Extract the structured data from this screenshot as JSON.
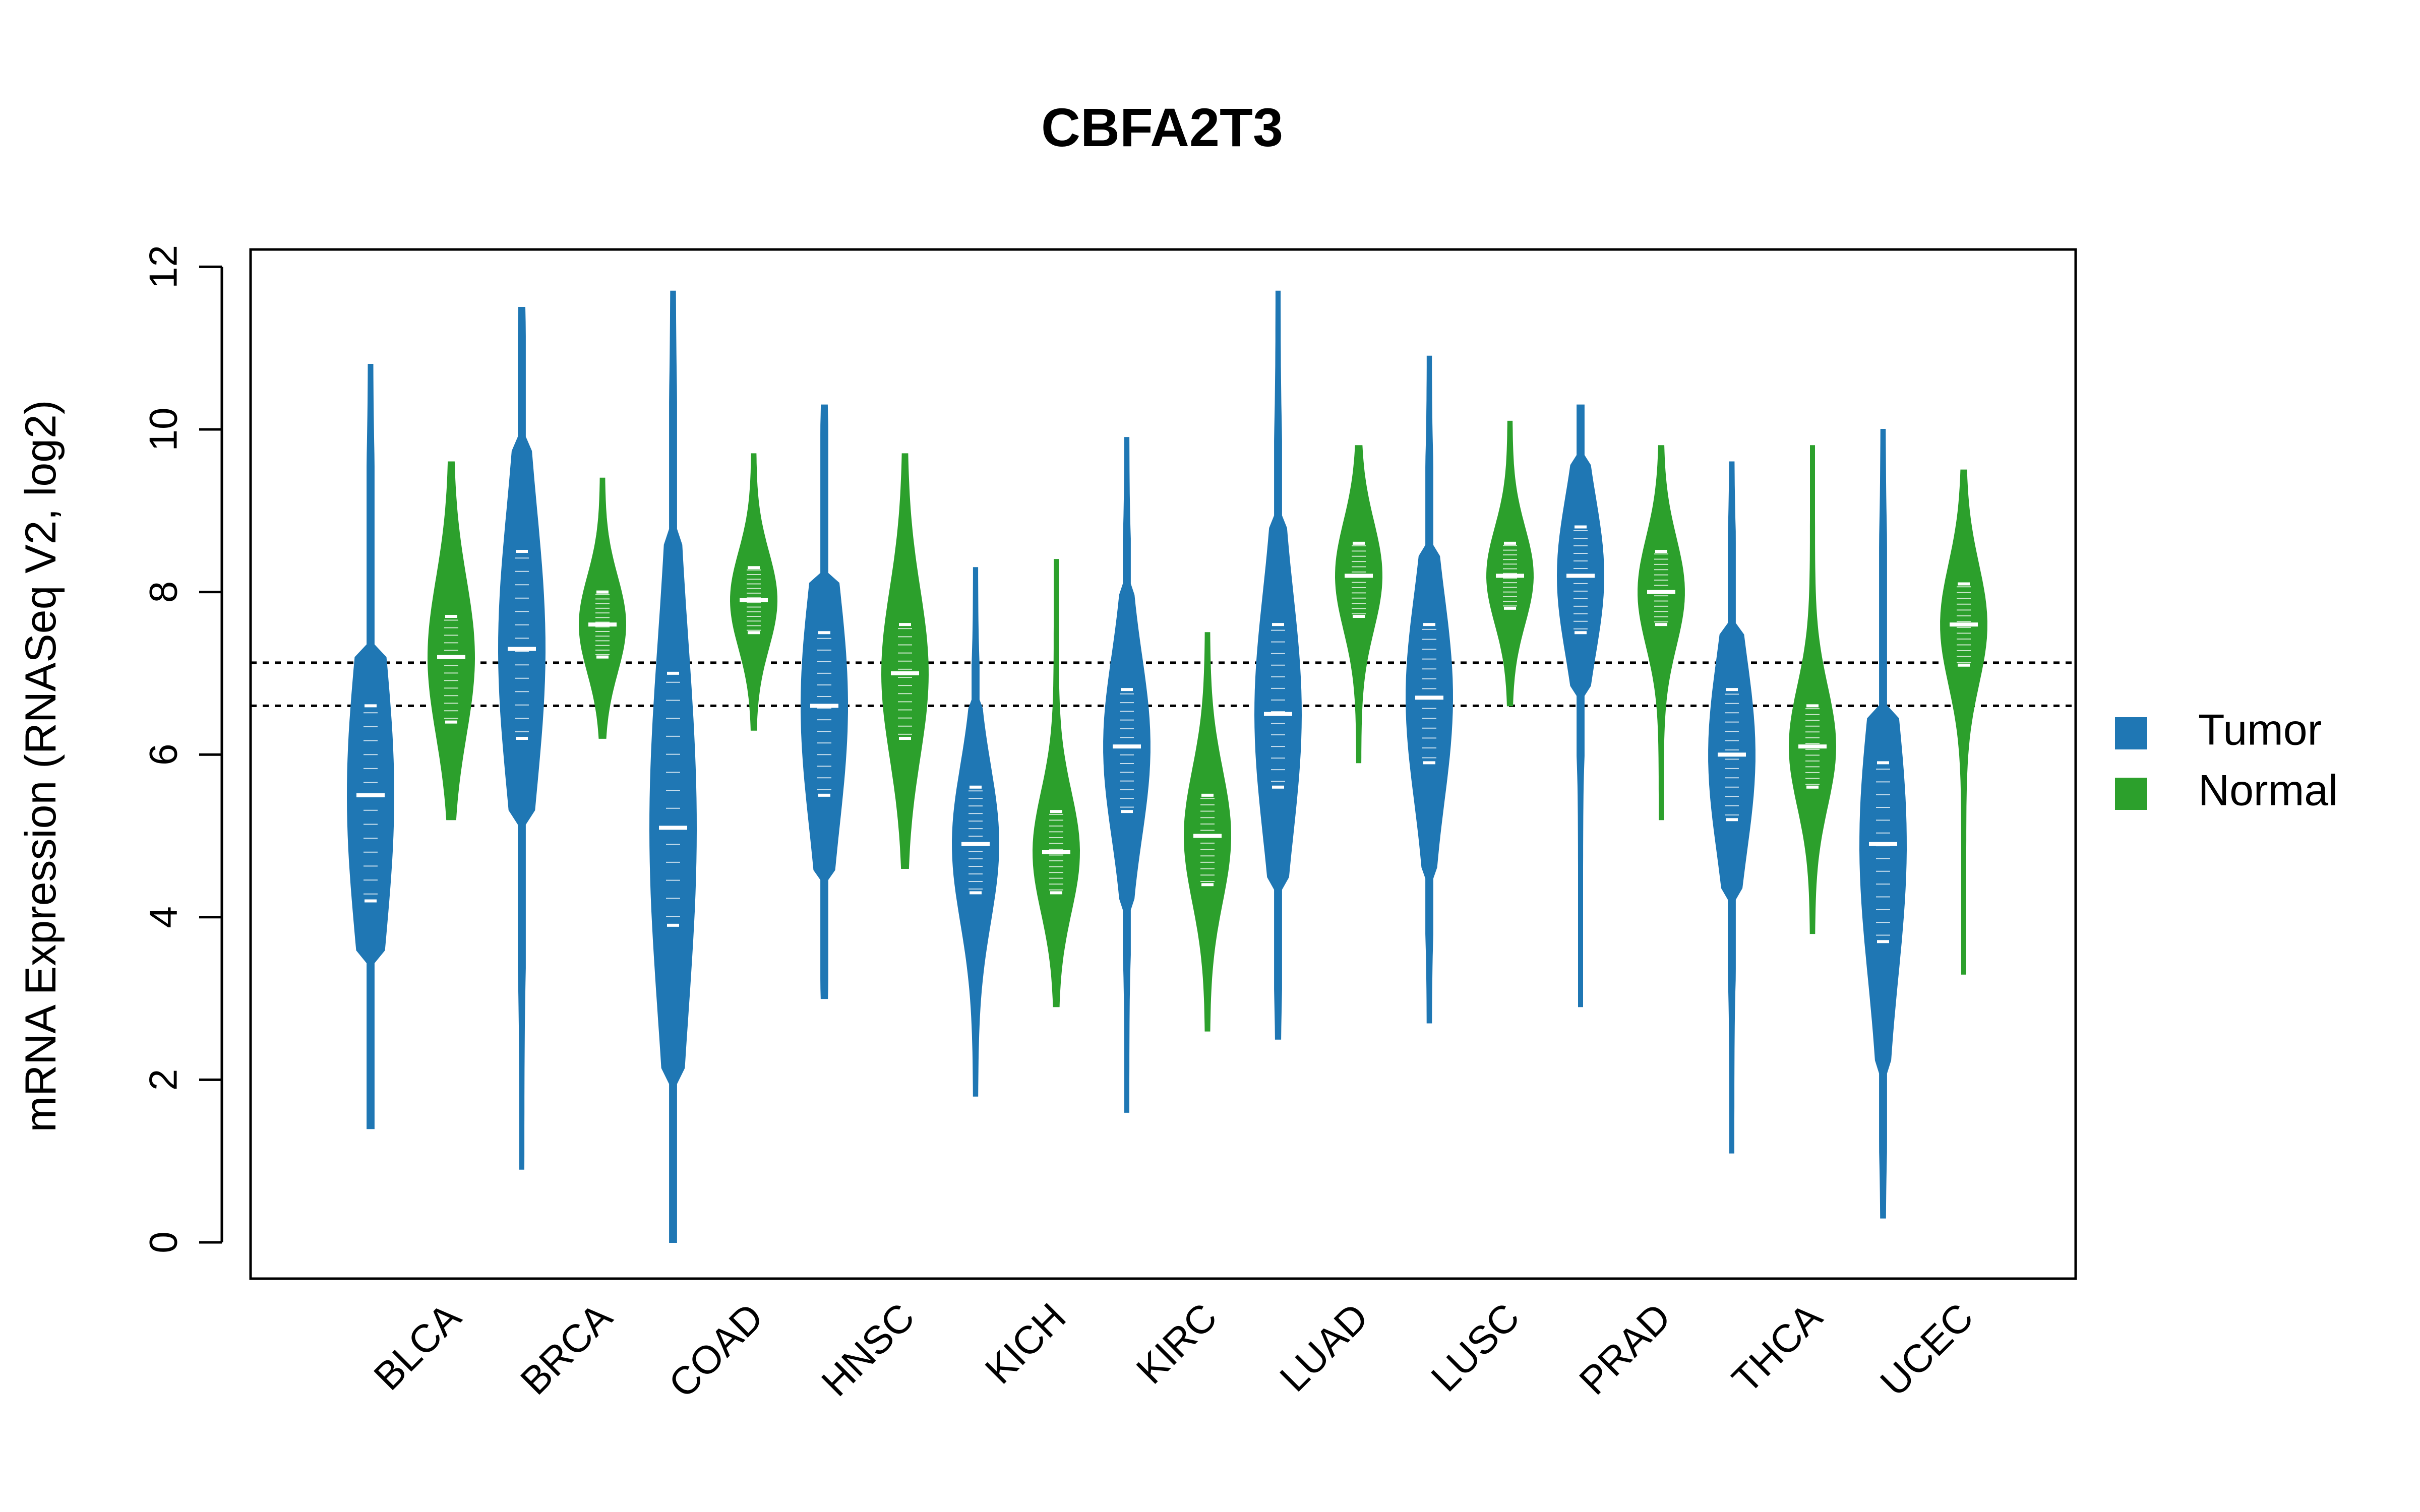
{
  "chart_data": {
    "type": "violin",
    "title": "CBFA2T3",
    "ylabel": "mRNA Expression (RNASeq V2, log2)",
    "xlabel": "",
    "ylim": [
      0,
      12
    ],
    "yticks": [
      0,
      2,
      4,
      6,
      8,
      10,
      12
    ],
    "categories": [
      "BLCA",
      "BRCA",
      "COAD",
      "HNSC",
      "KICH",
      "KIRC",
      "LUAD",
      "LUSC",
      "PRAD",
      "THCA",
      "UCEC"
    ],
    "reference_lines": [
      6.6,
      7.13
    ],
    "legend": {
      "position": "right",
      "entries": [
        "Tumor",
        "Normal"
      ]
    },
    "colors": {
      "Tumor": "#1f77b4",
      "Normal": "#2ca02c"
    },
    "series": [
      {
        "name": "Tumor",
        "min": [
          1.4,
          0.9,
          0.0,
          3.0,
          1.8,
          1.6,
          2.5,
          2.7,
          2.9,
          1.1,
          0.3
        ],
        "max": [
          10.8,
          11.5,
          11.7,
          10.3,
          8.3,
          9.9,
          11.7,
          10.9,
          10.3,
          9.6,
          10.0
        ],
        "median": [
          5.5,
          7.3,
          5.1,
          6.6,
          4.9,
          6.1,
          6.5,
          6.7,
          8.2,
          6.0,
          4.9
        ],
        "q1": [
          4.2,
          6.2,
          3.9,
          5.5,
          4.3,
          5.3,
          5.6,
          5.9,
          7.5,
          5.2,
          3.7
        ],
        "q3": [
          6.6,
          8.5,
          7.0,
          7.5,
          5.6,
          6.8,
          7.6,
          7.6,
          8.8,
          6.8,
          5.9
        ],
        "outer_min": [
          3.5,
          5.3,
          2.0,
          4.5,
          2.6,
          4.2,
          4.4,
          4.5,
          6.8,
          4.3,
          2.1
        ],
        "outer_max": [
          7.2,
          9.9,
          8.6,
          8.2,
          6.6,
          8.1,
          8.8,
          8.5,
          9.6,
          7.6,
          6.5
        ]
      },
      {
        "name": "Normal",
        "min": [
          5.2,
          6.2,
          6.3,
          4.6,
          2.9,
          2.6,
          5.9,
          6.6,
          5.2,
          3.8,
          3.3
        ],
        "max": [
          9.6,
          9.4,
          9.7,
          9.7,
          8.4,
          7.5,
          9.8,
          10.1,
          9.8,
          9.8,
          9.5
        ],
        "median": [
          7.2,
          7.6,
          7.9,
          7.0,
          4.8,
          5.0,
          8.2,
          8.2,
          8.0,
          6.1,
          7.6
        ],
        "q1": [
          6.4,
          7.2,
          7.5,
          6.2,
          4.3,
          4.4,
          7.7,
          7.8,
          7.6,
          5.6,
          7.1
        ],
        "q3": [
          7.7,
          8.0,
          8.3,
          7.6,
          5.3,
          5.5,
          8.6,
          8.6,
          8.5,
          6.6,
          8.1
        ]
      }
    ]
  }
}
